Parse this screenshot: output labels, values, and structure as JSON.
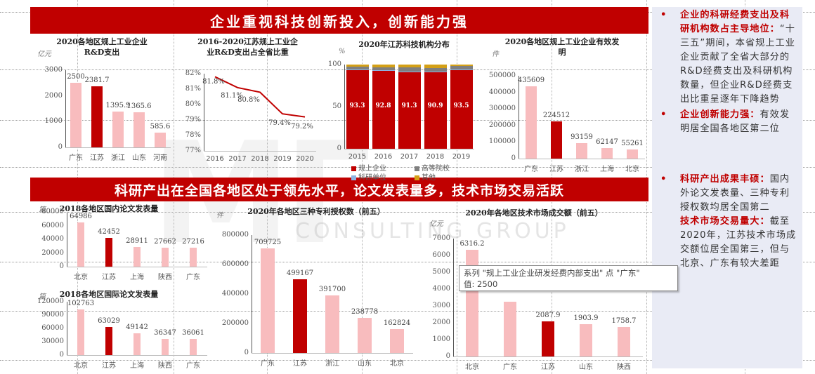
{
  "banners": {
    "top": "企业重视科技创新投入，创新能力强",
    "middle": "科研产出在全国各地区处于领先水平，论文发表量多，技术市场交易活跃"
  },
  "watermark": {
    "logo": "MF",
    "text": "CONSULTING GROUP"
  },
  "colors": {
    "accent": "#c00000",
    "bar_light": "#f8bcbe",
    "panel_bg": "#e9ebf5",
    "gray": "#7f7f7f",
    "gold": "#d4a017",
    "blue": "#8db3e2"
  },
  "side_panel": {
    "items": [
      {
        "bullet": "•",
        "em": "企业的科研经费支出及科研机构数占主导地位：",
        "text": "“十三五”期间，本省规上工业企业贡献了全省大部分的R&D经费支出及科研机构数量，但企业R&D经费支出比重呈逐年下降趋势"
      },
      {
        "bullet": "•",
        "em": "企业创新能力强：",
        "text": "有效发明居全国各地区第二位"
      },
      {
        "bullet": "•",
        "em": "科研产出成果丰硕：",
        "text": "国内外论文发表量、三种专利授权数均居全国第二"
      },
      {
        "bullet": "",
        "em": "技术市场交易量大：",
        "text": "截至2020年，江苏技术市场成交额位居全国第三，但与北京、广东有较大差距"
      }
    ]
  },
  "tooltip": {
    "line1": "系列 \"规上工业企业研发经费内部支出\" 点 \"广东\"",
    "line2": "值: 2500"
  },
  "chart_data": [
    {
      "id": "rd_spend",
      "type": "bar",
      "title": "2020各地区规上工业企业R&D支出",
      "title_lines": [
        "2020各地区规上工业企业",
        "R&D支出"
      ],
      "unit": "亿元",
      "categories": [
        "广东",
        "江苏",
        "浙江",
        "山东",
        "河南"
      ],
      "values": [
        2500,
        2381.7,
        1395.9,
        1365.6,
        585.6
      ],
      "labels": [
        "2500",
        "2381.7",
        "1395.9",
        "1365.6",
        "585.6"
      ],
      "highlight": "江苏",
      "yticks": [
        "3000",
        "2000",
        "1000",
        "0"
      ],
      "ylim": [
        0,
        3000
      ]
    },
    {
      "id": "rd_share",
      "type": "line",
      "title": "2016-2020江苏规上工业企业R&D支出占全省比重",
      "title_lines": [
        "2016-2020江苏规上工业企",
        "业R&D支出占全省比重"
      ],
      "x": [
        "2016",
        "2017",
        "2018",
        "2019",
        "2020"
      ],
      "values": [
        81.8,
        81.1,
        80.8,
        79.4,
        79.2
      ],
      "labels": [
        "81.8%",
        "81.1%",
        "80.8%",
        "79.4%",
        "79.2%"
      ],
      "yticks": [
        "82%",
        "81%",
        "80%",
        "79%",
        "78%",
        "77%"
      ],
      "ylim": [
        77,
        82
      ]
    },
    {
      "id": "institutions",
      "type": "bar",
      "stacked": true,
      "title": "2020年江苏科技机构分布",
      "unit": "%",
      "categories": [
        "2015",
        "2016",
        "2017",
        "2018",
        "2019"
      ],
      "series": [
        {
          "name": "规上企业",
          "values": [
            93.3,
            92.8,
            91.3,
            90.9,
            93.5
          ],
          "color": "#c00000"
        },
        {
          "name": "科研单位",
          "values": [
            0.5,
            0.5,
            0.5,
            0.5,
            0.5
          ],
          "color": "#8db3e2"
        },
        {
          "name": "高等院校",
          "values": [
            3.5,
            3.7,
            4.5,
            4.6,
            4.5
          ],
          "color": "#7f7f7f"
        },
        {
          "name": "其他",
          "values": [
            2.7,
            3.0,
            3.7,
            4.0,
            1.5
          ],
          "color": "#d4a017"
        }
      ],
      "labels": [
        "93.3",
        "92.8",
        "91.3",
        "90.9",
        "93.5"
      ],
      "yticks": [
        "100",
        "50",
        "0"
      ],
      "ylim": [
        0,
        100
      ],
      "legend": [
        "规上企业",
        "高等院校",
        "科研单位",
        "其他"
      ]
    },
    {
      "id": "patents_valid",
      "type": "bar",
      "title": "2020各地区规上工业企业有效发明",
      "title_lines": [
        "2020各地区规上工业企业有效发",
        "明"
      ],
      "unit": "件",
      "categories": [
        "广东",
        "江苏",
        "浙江",
        "上海",
        "北京"
      ],
      "values": [
        435609,
        224512,
        93159,
        62147,
        55261
      ],
      "labels": [
        "435609",
        "224512",
        "93159",
        "62147",
        "55261"
      ],
      "highlight": "江苏",
      "yticks": [
        "500000",
        "400000",
        "300000",
        "200000",
        "100000",
        "0"
      ],
      "ylim": [
        0,
        500000
      ]
    },
    {
      "id": "domestic_papers",
      "type": "bar",
      "title": "2018各地区国内论文发表量",
      "unit": "篇",
      "categories": [
        "北京",
        "江苏",
        "上海",
        "陕西",
        "广东"
      ],
      "values": [
        64986,
        42452,
        28911,
        27662,
        27216
      ],
      "labels": [
        "64986",
        "42452",
        "28911",
        "27662",
        "27216"
      ],
      "highlight": "江苏",
      "yticks": [
        "80000",
        "60000",
        "40000",
        "20000",
        "0"
      ],
      "ylim": [
        0,
        80000
      ]
    },
    {
      "id": "intl_papers",
      "type": "bar",
      "title": "2018各地区国际论文发表量",
      "unit": "篇",
      "categories": [
        "北京",
        "江苏",
        "上海",
        "陕西",
        "广东"
      ],
      "values": [
        102763,
        63029,
        49142,
        36347,
        36061
      ],
      "labels": [
        "102763",
        "63029",
        "49142",
        "36347",
        "36061"
      ],
      "highlight": "江苏",
      "yticks": [
        "120000",
        "90000",
        "60000",
        "30000",
        "0"
      ],
      "ylim": [
        0,
        120000
      ]
    },
    {
      "id": "patents_granted",
      "type": "bar",
      "title": "2020年各地区三种专利授权数（前五）",
      "unit": "件",
      "categories": [
        "广东",
        "江苏",
        "浙江",
        "山东",
        "北京"
      ],
      "values": [
        709725,
        499167,
        391700,
        238778,
        162824
      ],
      "labels": [
        "709725",
        "499167",
        "391700",
        "238778",
        "162824"
      ],
      "highlight": "江苏",
      "yticks": [
        "800000",
        "600000",
        "400000",
        "200000",
        "0"
      ],
      "ylim": [
        0,
        800000
      ]
    },
    {
      "id": "tech_market",
      "type": "bar",
      "title": "2020年各地区技术市场成交额（前五）",
      "unit": "亿元",
      "categories": [
        "北京",
        "广东",
        "江苏",
        "山东",
        "陕西"
      ],
      "values": [
        6316.2,
        3266.0,
        2087.9,
        1903.9,
        1758.7
      ],
      "labels": [
        "6316.2",
        "",
        "2087.9",
        "1903.9",
        "1758.7"
      ],
      "highlight": "江苏",
      "yticks": [
        "7000",
        "6000",
        "5000",
        "4000",
        "3000",
        "2000",
        "1000",
        "0"
      ],
      "ylim": [
        0,
        7000
      ]
    }
  ]
}
